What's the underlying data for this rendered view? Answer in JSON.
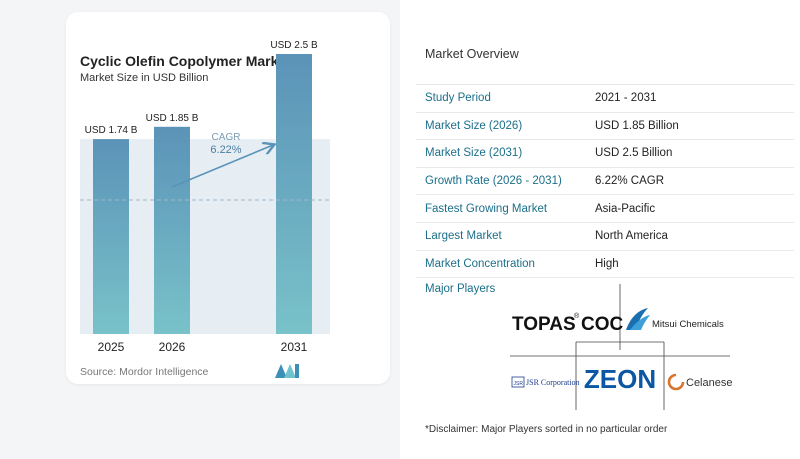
{
  "chart": {
    "title": "Cyclic Olefin Copolymer Market",
    "subtitle": "Market Size in USD Billion",
    "source": "Source: Mordor Intelligence",
    "cagr_label": "CAGR",
    "cagr_value": "6.22%"
  },
  "chart_data": {
    "type": "bar",
    "title": "Cyclic Olefin Copolymer Market",
    "subtitle": "Market Size in USD Billion",
    "categories": [
      "2025",
      "2026",
      "2031"
    ],
    "values": [
      1.74,
      1.85,
      2.5
    ],
    "data_labels": [
      "USD 1.74 B",
      "USD 1.85 B",
      "USD 2.5 B"
    ],
    "ylabel": "",
    "xlabel": "",
    "ylim": [
      0,
      2.75
    ],
    "grid": false,
    "colors": {
      "bar_top": "#5b93b8",
      "bar_bottom": "#79c2c9",
      "band": "#e6eef4",
      "arrow": "#5b93b8"
    }
  },
  "overview": {
    "title": "Market Overview",
    "rows": [
      {
        "label": "Study Period",
        "value": "2021 - 2031"
      },
      {
        "label": "Market Size (2026)",
        "value": "USD 1.85 Billion"
      },
      {
        "label": "Market Size (2031)",
        "value": "USD 2.5 Billion"
      },
      {
        "label": "Growth Rate (2026 - 2031)",
        "value": "6.22% CAGR"
      },
      {
        "label": "Fastest Growing Market",
        "value": "Asia-Pacific"
      },
      {
        "label": "Largest Market",
        "value": "North America"
      },
      {
        "label": "Market Concentration",
        "value": "High"
      }
    ]
  },
  "players": {
    "title": "Major Players",
    "logos": {
      "topas": "TOPAS",
      "coc": "COC",
      "registered": "®",
      "mitsui": "Mitsui Chemicals",
      "jsr": "JSR Corporation",
      "jsr_mark": "JSR",
      "zeon": "ZEON",
      "celanese": "Celanese"
    }
  },
  "disclaimer": "*Disclaimer: Major Players sorted in no particular order"
}
